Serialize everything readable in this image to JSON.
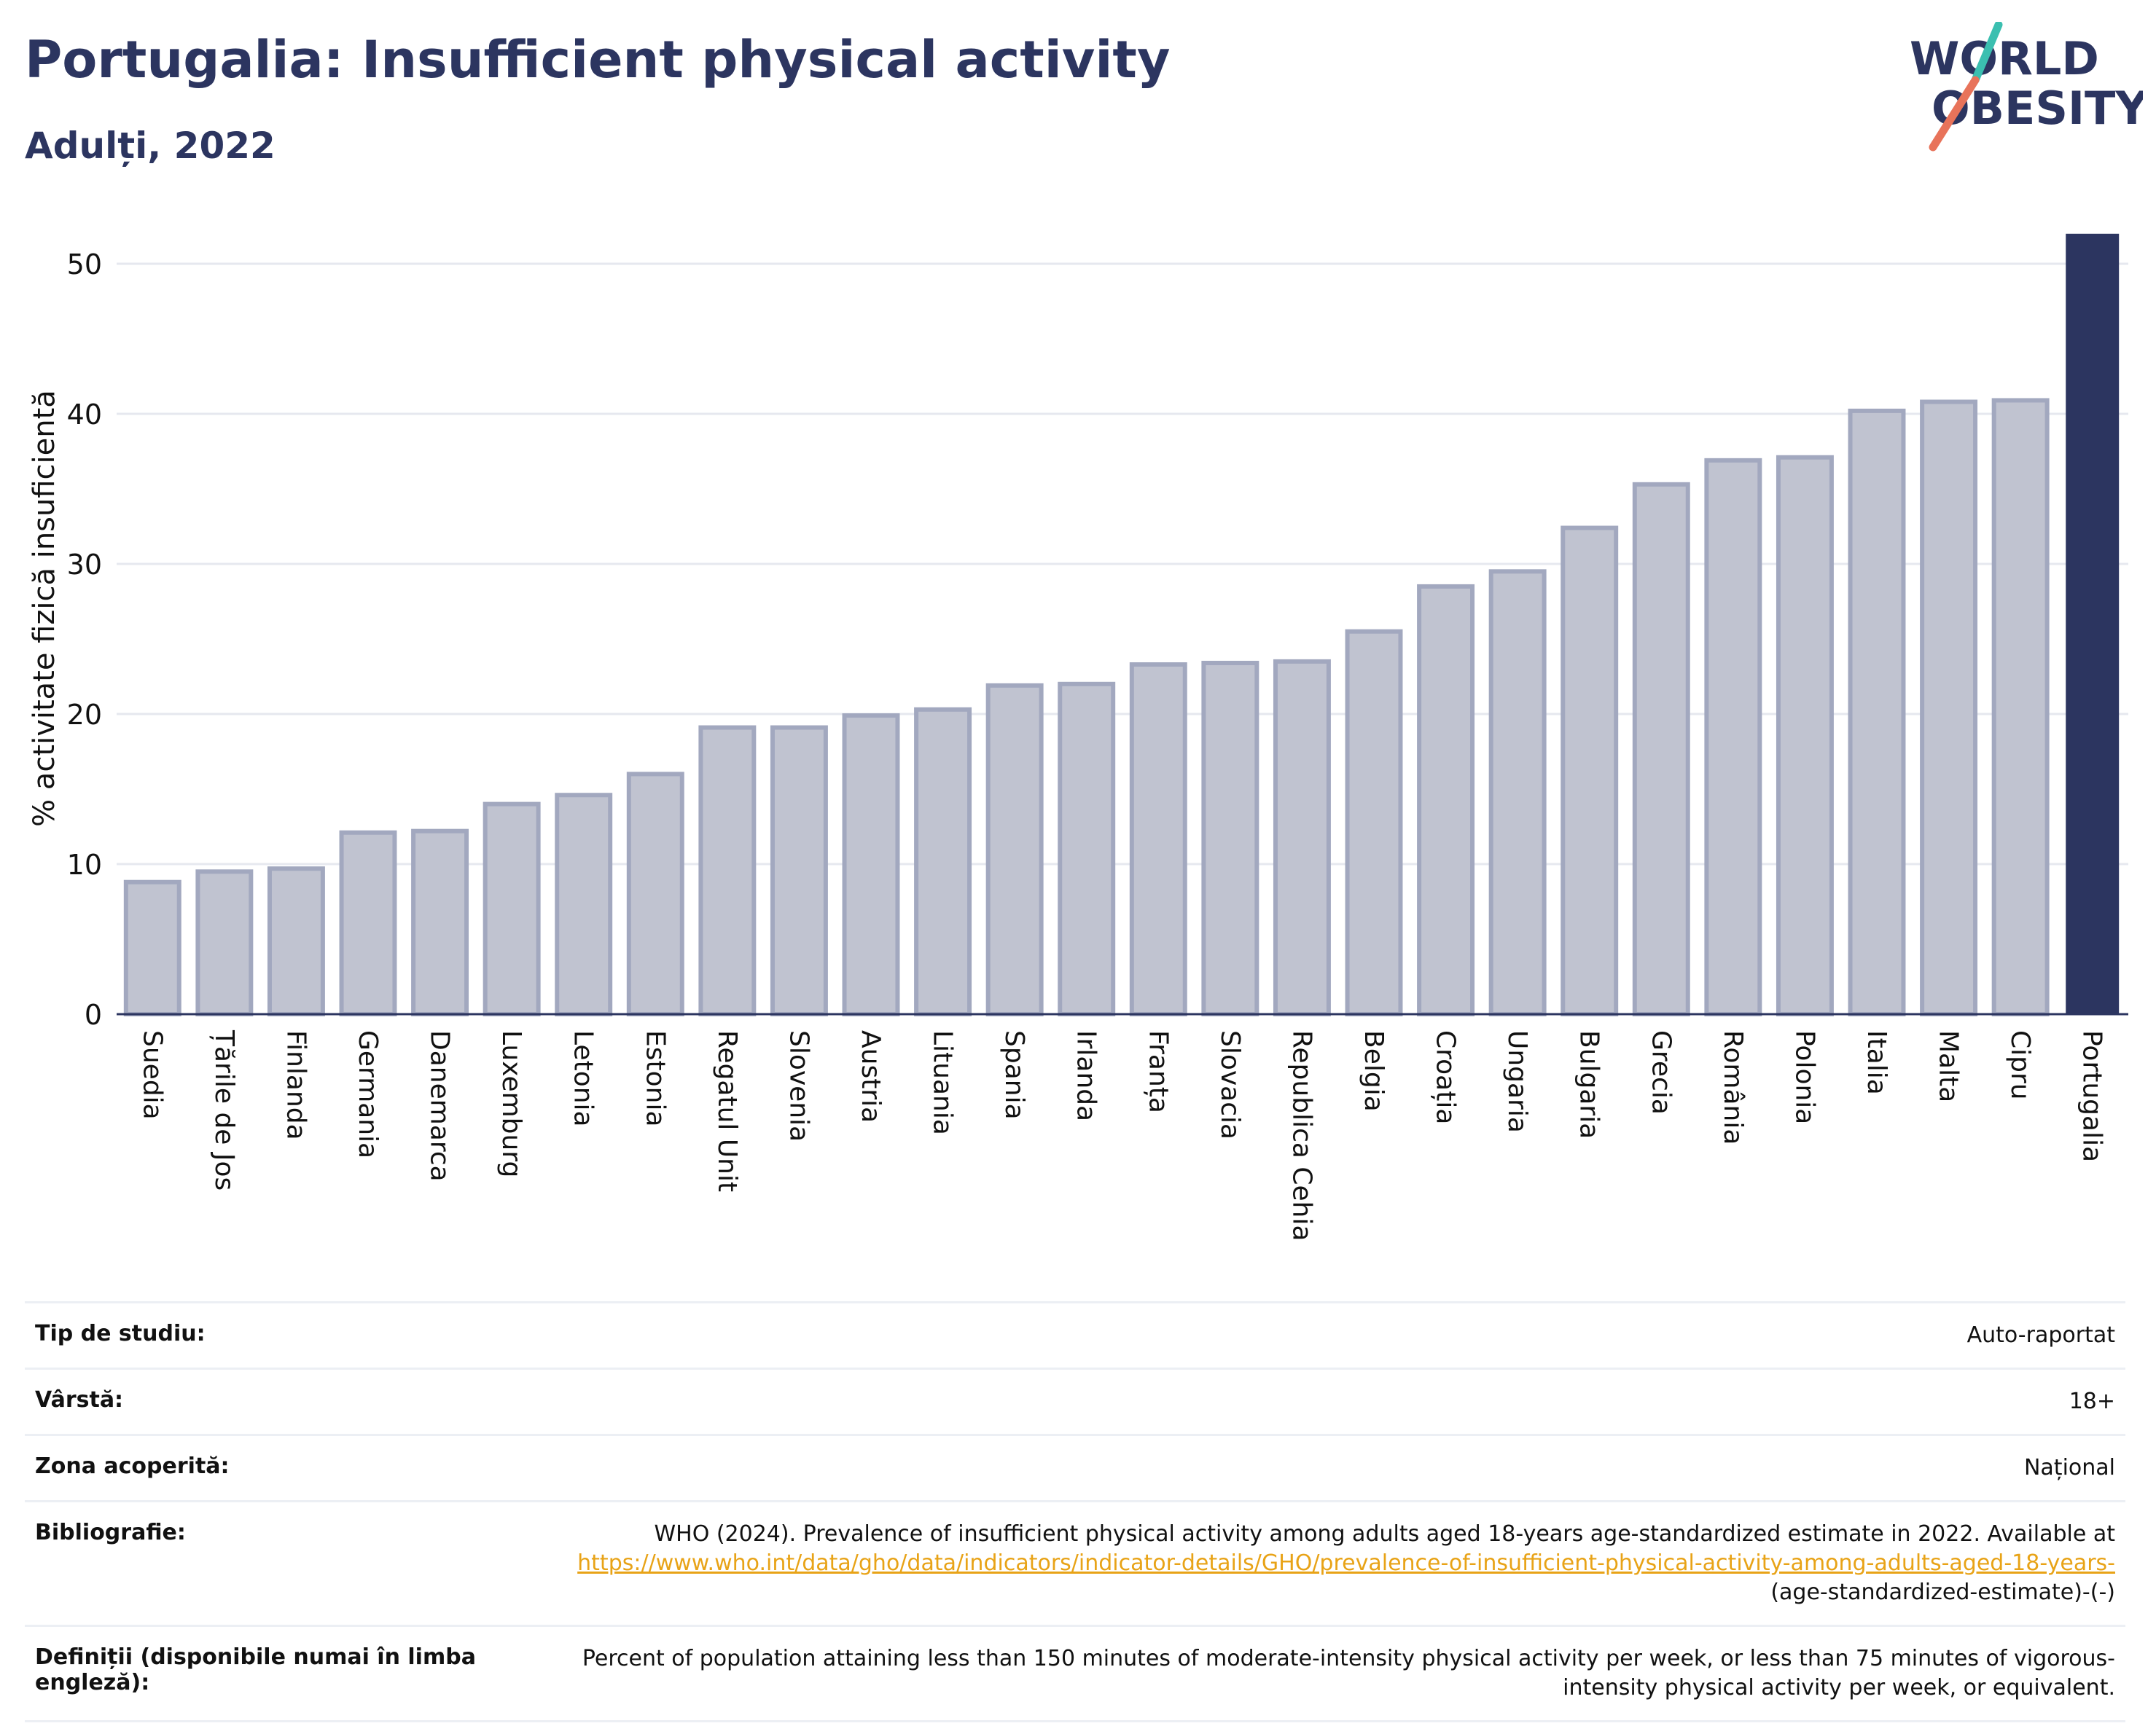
{
  "header": {
    "title": "Portugalia: Insufficient physical activity",
    "subtitle": "Adulți, 2022"
  },
  "logo": {
    "line1": "WORLD",
    "line2": "OBESITY"
  },
  "colors": {
    "bar_fill": "#c0c3d0",
    "bar_stroke": "#a2a8bf",
    "highlight": "#2c3560",
    "title": "#2c3560",
    "link": "#e8a317",
    "logo_teal": "#3bbfb0",
    "logo_coral": "#e8735a"
  },
  "chart_data": {
    "type": "bar",
    "categories": [
      "Suedia",
      "Țările de Jos",
      "Finlanda",
      "Germania",
      "Danemarca",
      "Luxemburg",
      "Letonia",
      "Estonia",
      "Regatul Unit",
      "Slovenia",
      "Austria",
      "Lituania",
      "Spania",
      "Irlanda",
      "Franța",
      "Slovacia",
      "Republica Cehia",
      "Belgia",
      "Croația",
      "Ungaria",
      "Bulgaria",
      "Grecia",
      "România",
      "Polonia",
      "Italia",
      "Malta",
      "Cipru",
      "Portugalia"
    ],
    "values": [
      8.8,
      9.5,
      9.7,
      12.1,
      12.2,
      14.0,
      14.6,
      16.0,
      19.1,
      19.1,
      19.9,
      20.3,
      21.9,
      22.0,
      23.3,
      23.4,
      23.5,
      25.5,
      28.5,
      29.5,
      32.4,
      35.3,
      36.9,
      37.1,
      40.2,
      40.8,
      40.9,
      52.0
    ],
    "highlight": "Portugalia",
    "title": "Portugalia: Insufficient physical activity",
    "subtitle": "Adulți, 2022",
    "xlabel": "",
    "ylabel": "% activitate fizică insuficientă",
    "ylim": [
      0,
      55
    ],
    "yticks": [
      0,
      10,
      20,
      30,
      40,
      50
    ],
    "grid": true
  },
  "meta": {
    "study_type": {
      "label": "Tip de studiu:",
      "value": "Auto-raportat"
    },
    "age": {
      "label": "Vârstă:",
      "value": "18+"
    },
    "coverage": {
      "label": "Zona acoperită:",
      "value": "Național"
    },
    "bibliography": {
      "label": "Bibliografie:",
      "text": "WHO (2024). Prevalence of insufficient physical activity among adults aged 18-years age-standardized estimate in 2022. Available at",
      "link": "https://www.who.int/data/gho/data/indicators/indicator-details/GHO/prevalence-of-insufficient-physical-activity-among-adults-aged-18-years-",
      "suffix": "(age-standardized-estimate)-(-)"
    },
    "definitions": {
      "label": "Definiții (disponibile numai în limba engleză):",
      "value": "Percent of population attaining less than 150 minutes of moderate-intensity physical activity per week, or less than 75 minutes of vigorous-intensity physical activity per week, or equivalent."
    }
  }
}
